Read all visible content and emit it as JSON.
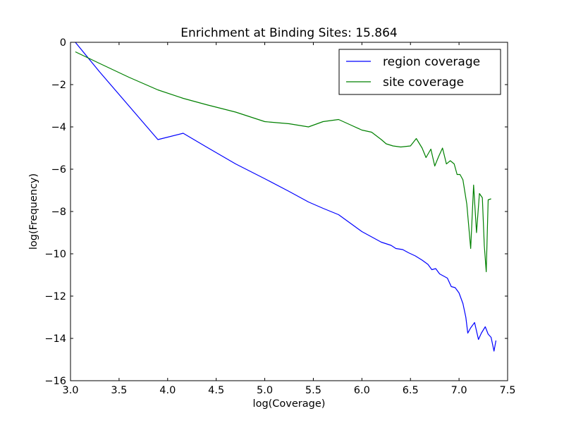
{
  "chart_data": {
    "type": "line",
    "title": "Enrichment at Binding Sites: 15.864",
    "xlabel": "log(Coverage)",
    "ylabel": "log(Frequency)",
    "xlim": [
      3.0,
      7.5
    ],
    "ylim": [
      -16,
      0
    ],
    "xticks": [
      3.0,
      3.5,
      4.0,
      4.5,
      5.0,
      5.5,
      6.0,
      6.5,
      7.0,
      7.5
    ],
    "xtick_labels": [
      "3.0",
      "3.5",
      "4.0",
      "4.5",
      "5.0",
      "5.5",
      "6.0",
      "6.5",
      "7.0",
      "7.5"
    ],
    "yticks": [
      0,
      -2,
      -4,
      -6,
      -8,
      -10,
      -12,
      -14,
      -16
    ],
    "ytick_labels": [
      "0",
      "−2",
      "−4",
      "−6",
      "−8",
      "−10",
      "−12",
      "−14",
      "−16"
    ],
    "grid": false,
    "legend_position": "top-right",
    "series": [
      {
        "name": "region coverage",
        "color": "#0000ff",
        "x": [
          3.05,
          3.3,
          3.6,
          3.9,
          4.16,
          4.4,
          4.7,
          5.0,
          5.25,
          5.45,
          5.6,
          5.76,
          5.88,
          6.0,
          6.1,
          6.2,
          6.3,
          6.35,
          6.42,
          6.48,
          6.55,
          6.62,
          6.68,
          6.72,
          6.76,
          6.8,
          6.84,
          6.88,
          6.92,
          6.96,
          7.0,
          7.04,
          7.07,
          7.09,
          7.12,
          7.16,
          7.2,
          7.23,
          7.27,
          7.3,
          7.33,
          7.36,
          7.38
        ],
        "y": [
          0.0,
          -1.4,
          -3.0,
          -4.6,
          -4.3,
          -4.95,
          -5.75,
          -6.45,
          -7.05,
          -7.55,
          -7.85,
          -8.15,
          -8.55,
          -8.95,
          -9.2,
          -9.45,
          -9.6,
          -9.75,
          -9.8,
          -9.95,
          -10.1,
          -10.3,
          -10.5,
          -10.75,
          -10.7,
          -10.95,
          -11.05,
          -11.15,
          -11.55,
          -11.6,
          -11.85,
          -12.35,
          -13.0,
          -13.75,
          -13.5,
          -13.25,
          -14.05,
          -13.75,
          -13.45,
          -13.8,
          -13.95,
          -14.6,
          -14.1
        ]
      },
      {
        "name": "site coverage",
        "color": "#008000",
        "x": [
          3.05,
          3.3,
          3.6,
          3.9,
          4.16,
          4.4,
          4.7,
          5.0,
          5.25,
          5.45,
          5.6,
          5.76,
          5.88,
          6.0,
          6.1,
          6.2,
          6.25,
          6.32,
          6.4,
          6.5,
          6.56,
          6.62,
          6.66,
          6.71,
          6.75,
          6.79,
          6.83,
          6.87,
          6.91,
          6.95,
          6.98,
          7.01,
          7.04,
          7.08,
          7.12,
          7.15,
          7.18,
          7.21,
          7.24,
          7.26,
          7.28,
          7.3,
          7.33
        ],
        "y": [
          -0.45,
          -1.0,
          -1.65,
          -2.25,
          -2.65,
          -2.95,
          -3.3,
          -3.75,
          -3.85,
          -4.0,
          -3.75,
          -3.65,
          -3.9,
          -4.15,
          -4.25,
          -4.6,
          -4.8,
          -4.9,
          -4.95,
          -4.9,
          -4.55,
          -5.0,
          -5.45,
          -5.05,
          -5.85,
          -5.4,
          -5.0,
          -5.75,
          -5.6,
          -5.75,
          -6.25,
          -6.25,
          -6.5,
          -7.65,
          -9.75,
          -6.75,
          -9.0,
          -7.15,
          -7.35,
          -9.6,
          -10.85,
          -7.45,
          -7.4
        ]
      }
    ]
  }
}
